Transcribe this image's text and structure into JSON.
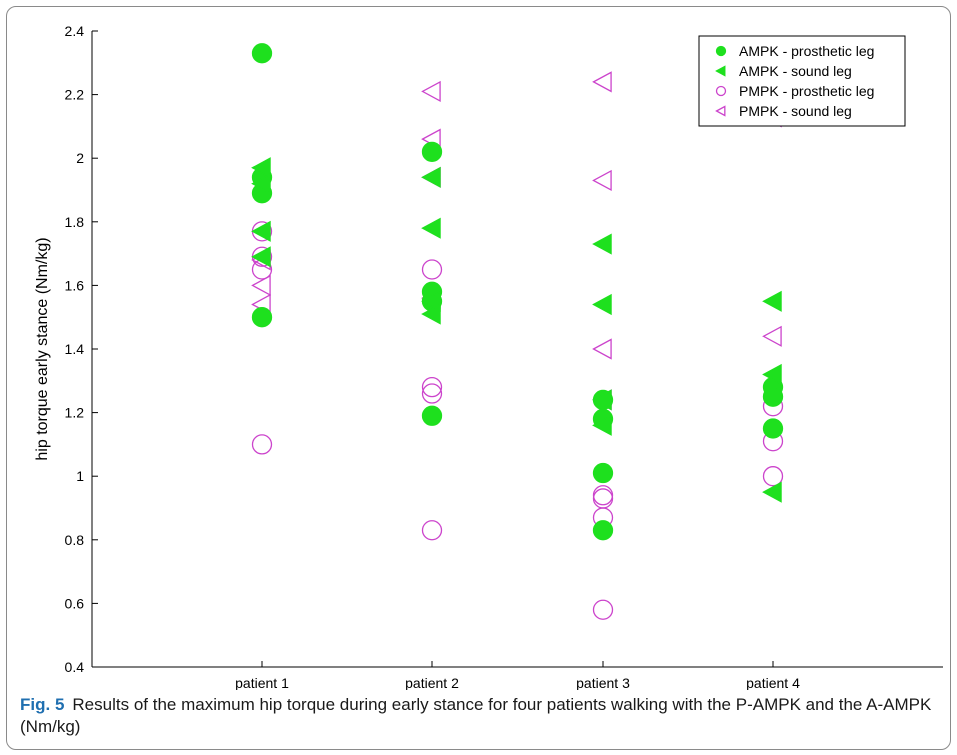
{
  "caption": {
    "label": "Fig. 5",
    "text": "Results of the maximum hip torque during early stance for four patients walking with the P-AMPK and the A-AMPK (Nm/kg)"
  },
  "chart_data": {
    "type": "scatter",
    "title": "",
    "xlabel": "",
    "ylabel": "hip torque early stance (Nm/kg)",
    "categories": [
      "patient 1",
      "patient 2",
      "patient 3",
      "patient 4"
    ],
    "ylim": [
      0.4,
      2.4
    ],
    "yticks": [
      0.4,
      0.6,
      0.8,
      1,
      1.2,
      1.4,
      1.6,
      1.8,
      2,
      2.2,
      2.4
    ],
    "ytick_labels": [
      "0.4",
      "0.6",
      "0.8",
      "1",
      "1.2",
      "1.4",
      "1.6",
      "1.8",
      "2",
      "2.2",
      "2.4"
    ],
    "grid": false,
    "legend_position": "top-right",
    "colors": {
      "ampk": "#1ee01e",
      "pmpk": "#cc44cc"
    },
    "series": [
      {
        "name": "AMPK - prosthetic leg",
        "marker": "filled-circle",
        "points": [
          [
            "patient 1",
            2.33
          ],
          [
            "patient 1",
            1.94
          ],
          [
            "patient 1",
            1.89
          ],
          [
            "patient 1",
            1.5
          ],
          [
            "patient 2",
            2.02
          ],
          [
            "patient 2",
            1.58
          ],
          [
            "patient 2",
            1.55
          ],
          [
            "patient 2",
            1.19
          ],
          [
            "patient 3",
            1.24
          ],
          [
            "patient 3",
            1.18
          ],
          [
            "patient 3",
            1.01
          ],
          [
            "patient 3",
            0.83
          ],
          [
            "patient 4",
            1.28
          ],
          [
            "patient 4",
            1.25
          ],
          [
            "patient 4",
            1.15
          ]
        ]
      },
      {
        "name": "AMPK - sound leg",
        "marker": "filled-triangle-left",
        "points": [
          [
            "patient 1",
            1.97
          ],
          [
            "patient 1",
            1.92
          ],
          [
            "patient 1",
            1.77
          ],
          [
            "patient 1",
            1.69
          ],
          [
            "patient 2",
            1.94
          ],
          [
            "patient 2",
            1.78
          ],
          [
            "patient 2",
            1.55
          ],
          [
            "patient 2",
            1.51
          ],
          [
            "patient 3",
            1.73
          ],
          [
            "patient 3",
            1.54
          ],
          [
            "patient 3",
            1.24
          ],
          [
            "patient 3",
            1.16
          ],
          [
            "patient 4",
            1.55
          ],
          [
            "patient 4",
            1.32
          ],
          [
            "patient 4",
            0.95
          ]
        ]
      },
      {
        "name": "PMPK - prosthetic leg",
        "marker": "open-circle",
        "points": [
          [
            "patient 1",
            1.77
          ],
          [
            "patient 1",
            1.69
          ],
          [
            "patient 1",
            1.65
          ],
          [
            "patient 1",
            1.1
          ],
          [
            "patient 2",
            1.65
          ],
          [
            "patient 2",
            1.28
          ],
          [
            "patient 2",
            1.26
          ],
          [
            "patient 2",
            0.83
          ],
          [
            "patient 3",
            0.94
          ],
          [
            "patient 3",
            0.93
          ],
          [
            "patient 3",
            0.87
          ],
          [
            "patient 3",
            0.58
          ],
          [
            "patient 4",
            1.22
          ],
          [
            "patient 4",
            1.11
          ],
          [
            "patient 4",
            1.0
          ]
        ]
      },
      {
        "name": "PMPK - sound leg",
        "marker": "open-triangle-left",
        "points": [
          [
            "patient 1",
            1.68
          ],
          [
            "patient 1",
            1.6
          ],
          [
            "patient 1",
            1.54
          ],
          [
            "patient 2",
            2.21
          ],
          [
            "patient 2",
            2.06
          ],
          [
            "patient 2",
            1.94
          ],
          [
            "patient 2",
            1.56
          ],
          [
            "patient 3",
            2.24
          ],
          [
            "patient 3",
            1.93
          ],
          [
            "patient 3",
            1.4
          ],
          [
            "patient 3",
            1.24
          ],
          [
            "patient 4",
            2.13
          ],
          [
            "patient 4",
            1.44
          ]
        ]
      }
    ]
  }
}
